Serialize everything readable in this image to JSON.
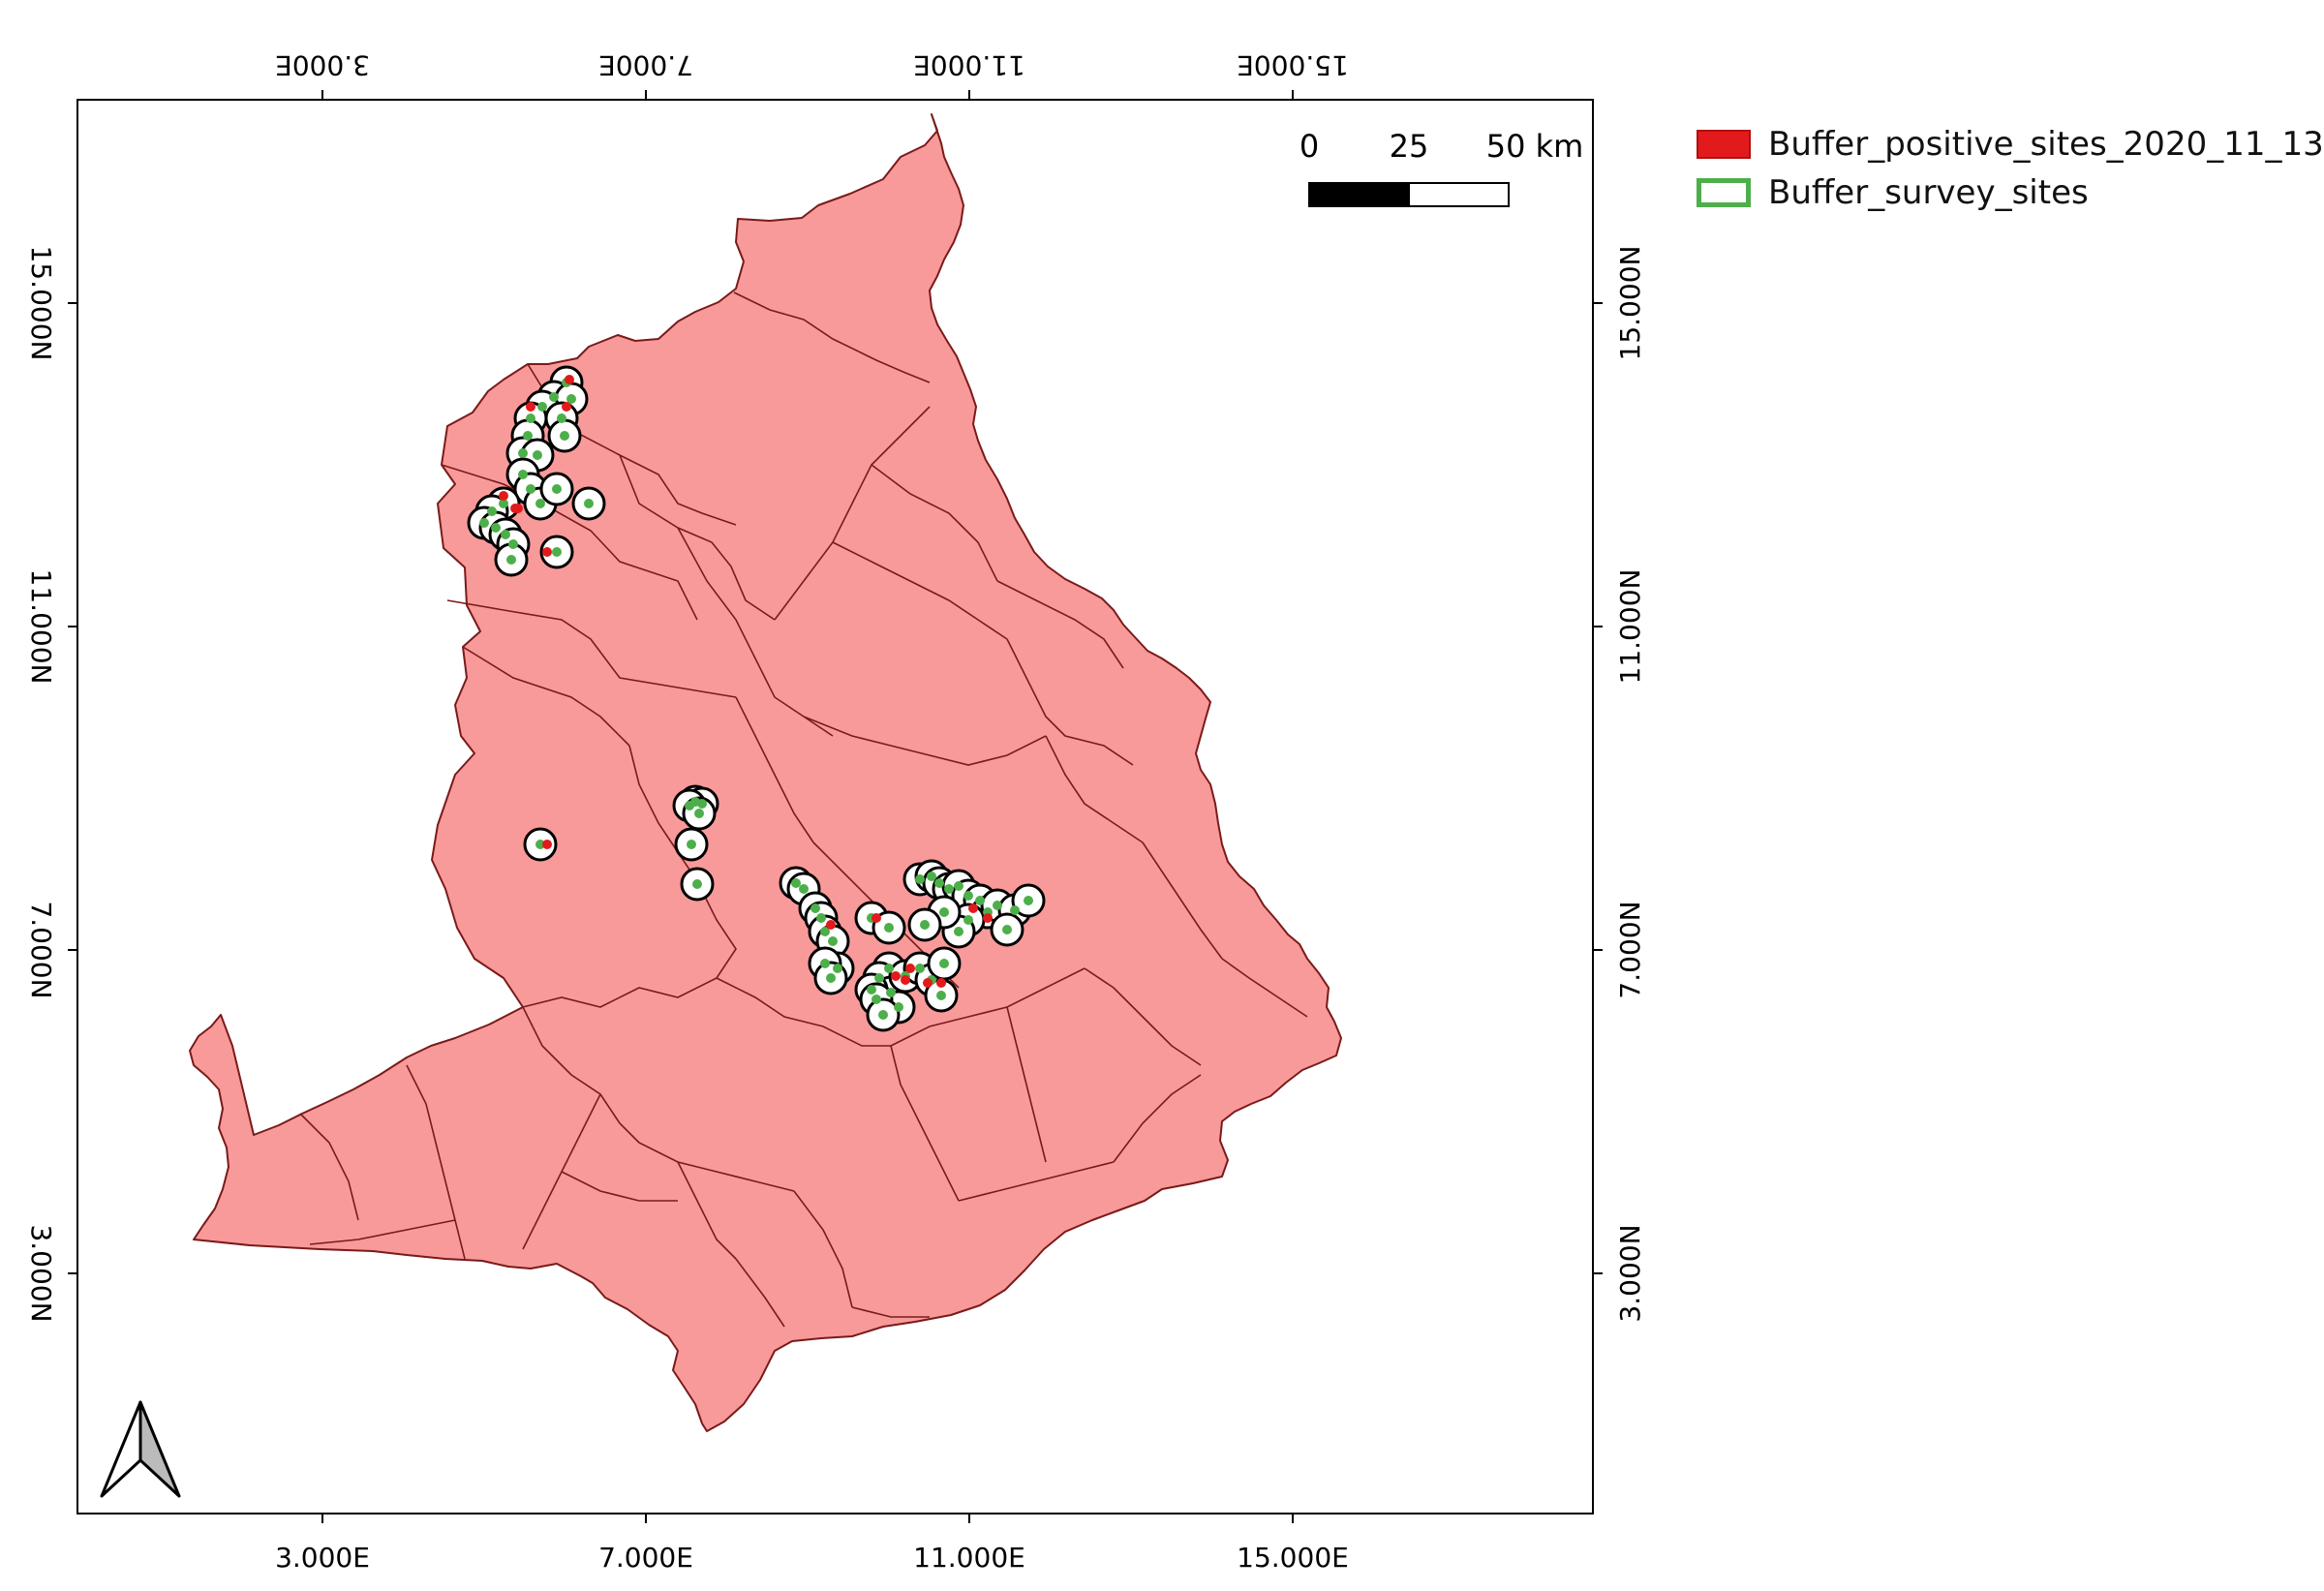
{
  "map": {
    "x_ticks_bottom": [
      "3.000E",
      "7.000E",
      "11.000E",
      "15.000E"
    ],
    "x_ticks_top": [
      "3.000E",
      "7.000E",
      "11.000E",
      "15.000E"
    ],
    "y_ticks_left": [
      "15.000N",
      "11.000N",
      "7.000N",
      "3.000N"
    ],
    "y_ticks_right": [
      "15.000N",
      "11.000N",
      "7.000N",
      "3.000N"
    ],
    "scale_bar": {
      "labels": [
        "0",
        "25",
        "50 km"
      ]
    },
    "north_arrow": {
      "icon": "north-arrow-icon"
    },
    "fill_color": "#f99a9a",
    "boundary_color": "#7a1a1a",
    "survey_color": "#4daf4a",
    "positive_color": "#e31a1c"
  },
  "legend": {
    "items": [
      {
        "label": "Buffer_positive_sites_2020_11_13",
        "fill": "#e31a1c",
        "stroke": "#b01010"
      },
      {
        "label": "Buffer_survey_sites",
        "fill": "#ffffff",
        "stroke": "#4daf4a"
      }
    ]
  }
}
